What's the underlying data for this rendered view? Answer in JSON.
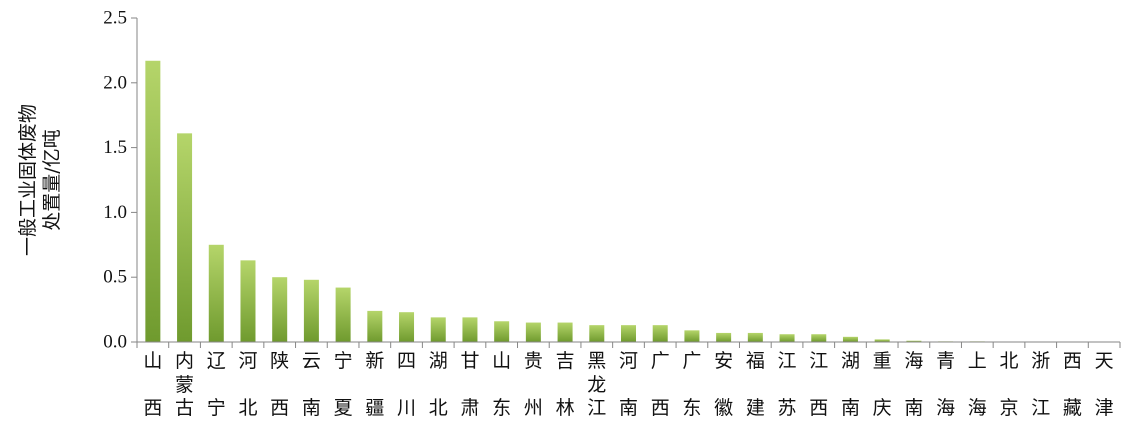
{
  "chart_data": {
    "type": "bar",
    "categories": [
      "山西",
      "内蒙古",
      "辽宁",
      "河北",
      "陕西",
      "云南",
      "宁夏",
      "新疆",
      "四川",
      "湖北",
      "甘肃",
      "山东",
      "贵州",
      "吉林",
      "黑龙江",
      "河南",
      "广西",
      "广东",
      "安徽",
      "福建",
      "江苏",
      "江西",
      "湖南",
      "重庆",
      "海南",
      "青海",
      "上海",
      "北京",
      "浙江",
      "西藏",
      "天津"
    ],
    "category_lines": [
      [
        "山",
        "西"
      ],
      [
        "内",
        "蒙",
        "古"
      ],
      [
        "辽",
        "宁"
      ],
      [
        "河",
        "北"
      ],
      [
        "陕",
        "西"
      ],
      [
        "云",
        "南"
      ],
      [
        "宁",
        "夏"
      ],
      [
        "新",
        "疆"
      ],
      [
        "四",
        "川"
      ],
      [
        "湖",
        "北"
      ],
      [
        "甘",
        "肃"
      ],
      [
        "山",
        "东"
      ],
      [
        "贵",
        "州"
      ],
      [
        "吉",
        "林"
      ],
      [
        "黑",
        "龙",
        "江"
      ],
      [
        "河",
        "南"
      ],
      [
        "广",
        "西"
      ],
      [
        "广",
        "东"
      ],
      [
        "安",
        "徽"
      ],
      [
        "福",
        "建"
      ],
      [
        "江",
        "苏"
      ],
      [
        "江",
        "西"
      ],
      [
        "湖",
        "南"
      ],
      [
        "重",
        "庆"
      ],
      [
        "海",
        "南"
      ],
      [
        "青",
        "海"
      ],
      [
        "上",
        "海"
      ],
      [
        "北",
        "京"
      ],
      [
        "浙",
        "江"
      ],
      [
        "西",
        "藏"
      ],
      [
        "天",
        "津"
      ]
    ],
    "values": [
      2.17,
      1.61,
      0.75,
      0.63,
      0.5,
      0.48,
      0.42,
      0.24,
      0.23,
      0.19,
      0.19,
      0.16,
      0.15,
      0.15,
      0.13,
      0.13,
      0.13,
      0.09,
      0.07,
      0.07,
      0.06,
      0.06,
      0.04,
      0.02,
      0.01,
      0.005,
      0.005,
      0.003,
      0.002,
      0.001,
      0.001
    ],
    "ylabel_lines": [
      "一般工业固体废物",
      "处置量/亿吨"
    ],
    "ylim": [
      0,
      2.5
    ],
    "yticks": [
      "0.0",
      "0.5",
      "1.0",
      "1.5",
      "2.0",
      "2.5"
    ],
    "grid": false,
    "colors": {
      "bar_top": "#b5d56a",
      "bar_bottom": "#6f9a2e",
      "axis": "#868686"
    }
  }
}
